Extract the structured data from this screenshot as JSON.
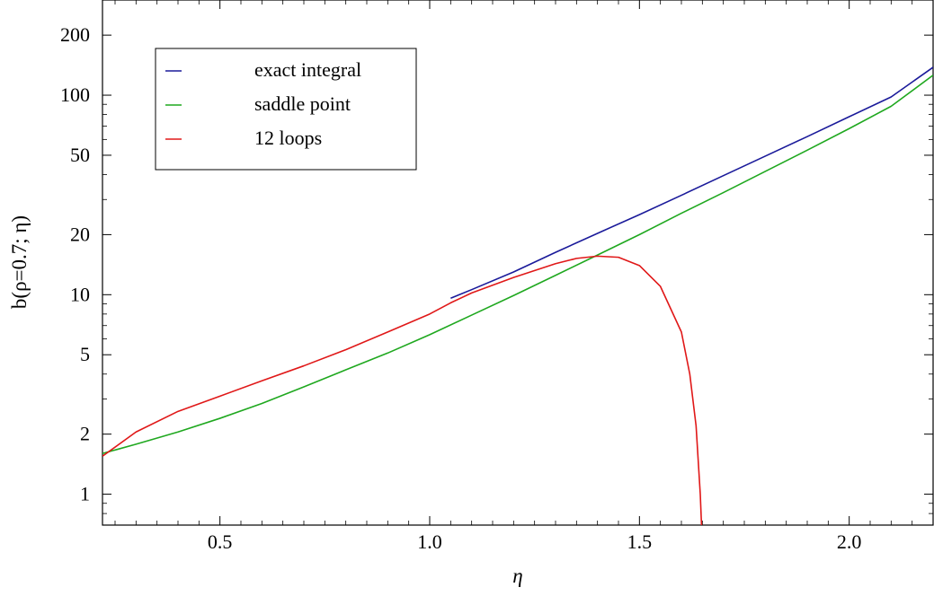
{
  "chart_data": {
    "type": "line",
    "title": "",
    "xlabel": "η",
    "ylabel": "b(ρ=0.7; η)",
    "xscale": "linear",
    "yscale": "log",
    "xlim": [
      0.22,
      2.2
    ],
    "ylim": [
      0.7,
      300
    ],
    "grid": false,
    "legend_position": "top-left",
    "x_ticks": [
      {
        "value": 0.5,
        "label": "0.5"
      },
      {
        "value": 1.0,
        "label": "1.0"
      },
      {
        "value": 1.5,
        "label": "1.5"
      },
      {
        "value": 2.0,
        "label": "2.0"
      }
    ],
    "y_ticks": [
      {
        "value": 1,
        "label": "1"
      },
      {
        "value": 2,
        "label": "2"
      },
      {
        "value": 5,
        "label": "5"
      },
      {
        "value": 10,
        "label": "10"
      },
      {
        "value": 20,
        "label": "20"
      },
      {
        "value": 50,
        "label": "50"
      },
      {
        "value": 100,
        "label": "100"
      },
      {
        "value": 200,
        "label": "200"
      }
    ],
    "series": [
      {
        "name": "exact integral",
        "color": "#1a1a9a",
        "x": [
          1.05,
          1.1,
          1.2,
          1.3,
          1.4,
          1.5,
          1.6,
          1.7,
          1.8,
          1.9,
          2.0,
          2.1,
          2.2
        ],
        "y": [
          9.6,
          10.6,
          13.0,
          16.3,
          20.3,
          25.2,
          31.5,
          39.5,
          49.5,
          62.0,
          78.0,
          98.0,
          138
        ]
      },
      {
        "name": "saddle point",
        "color": "#1fa81f",
        "x": [
          0.22,
          0.3,
          0.4,
          0.5,
          0.6,
          0.7,
          0.8,
          0.9,
          1.0,
          1.1,
          1.2,
          1.3,
          1.4,
          1.5,
          1.6,
          1.7,
          1.8,
          1.9,
          2.0,
          2.1,
          2.2
        ],
        "y": [
          1.6,
          1.78,
          2.05,
          2.4,
          2.85,
          3.45,
          4.2,
          5.1,
          6.3,
          7.9,
          9.9,
          12.5,
          15.8,
          20.0,
          25.6,
          32.5,
          41.5,
          53.0,
          68.0,
          88.0,
          126
        ]
      },
      {
        "name": "12 loops",
        "color": "#e01818",
        "x": [
          0.22,
          0.3,
          0.4,
          0.5,
          0.6,
          0.7,
          0.8,
          0.9,
          1.0,
          1.05,
          1.1,
          1.2,
          1.3,
          1.35,
          1.4,
          1.45,
          1.5,
          1.55,
          1.6,
          1.62,
          1.635,
          1.645,
          1.65
        ],
        "y": [
          1.55,
          2.05,
          2.6,
          3.1,
          3.7,
          4.4,
          5.3,
          6.5,
          8.0,
          9.1,
          10.2,
          12.2,
          14.3,
          15.2,
          15.6,
          15.4,
          14.0,
          11.0,
          6.5,
          4.0,
          2.2,
          1.0,
          0.55
        ]
      }
    ]
  }
}
